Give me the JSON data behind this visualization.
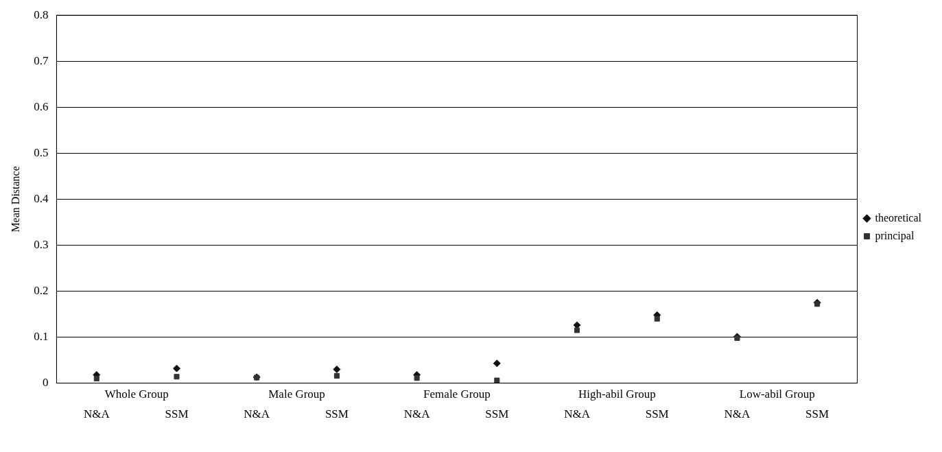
{
  "chart_data": {
    "type": "scatter",
    "ylabel": "Mean Distance",
    "categories": [
      "N&A",
      "SSM",
      "N&A",
      "SSM",
      "N&A",
      "SSM",
      "N&A",
      "SSM",
      "N&A",
      "SSM"
    ],
    "series": [
      {
        "name": "theoretical",
        "color": "#111111",
        "marker": "diamond",
        "values": [
          0.018,
          0.032,
          0.013,
          0.03,
          0.018,
          0.043,
          0.126,
          0.148,
          0.101,
          0.175
        ]
      },
      {
        "name": "principal",
        "color": "#333333",
        "marker": "square",
        "values": [
          0.01,
          0.014,
          0.012,
          0.016,
          0.011,
          0.006,
          0.115,
          0.14,
          0.098,
          0.172
        ]
      }
    ],
    "annotations": [
      "Whole Group",
      "Male Group",
      "Female Group",
      "High-abil Group",
      "Low-abil Group"
    ],
    "ylim": [
      0,
      0.8
    ],
    "yticks": [
      0,
      0.1,
      0.2,
      0.3,
      0.4,
      0.5,
      0.6,
      0.7,
      0.8
    ],
    "grid": "y",
    "legend": "right"
  }
}
